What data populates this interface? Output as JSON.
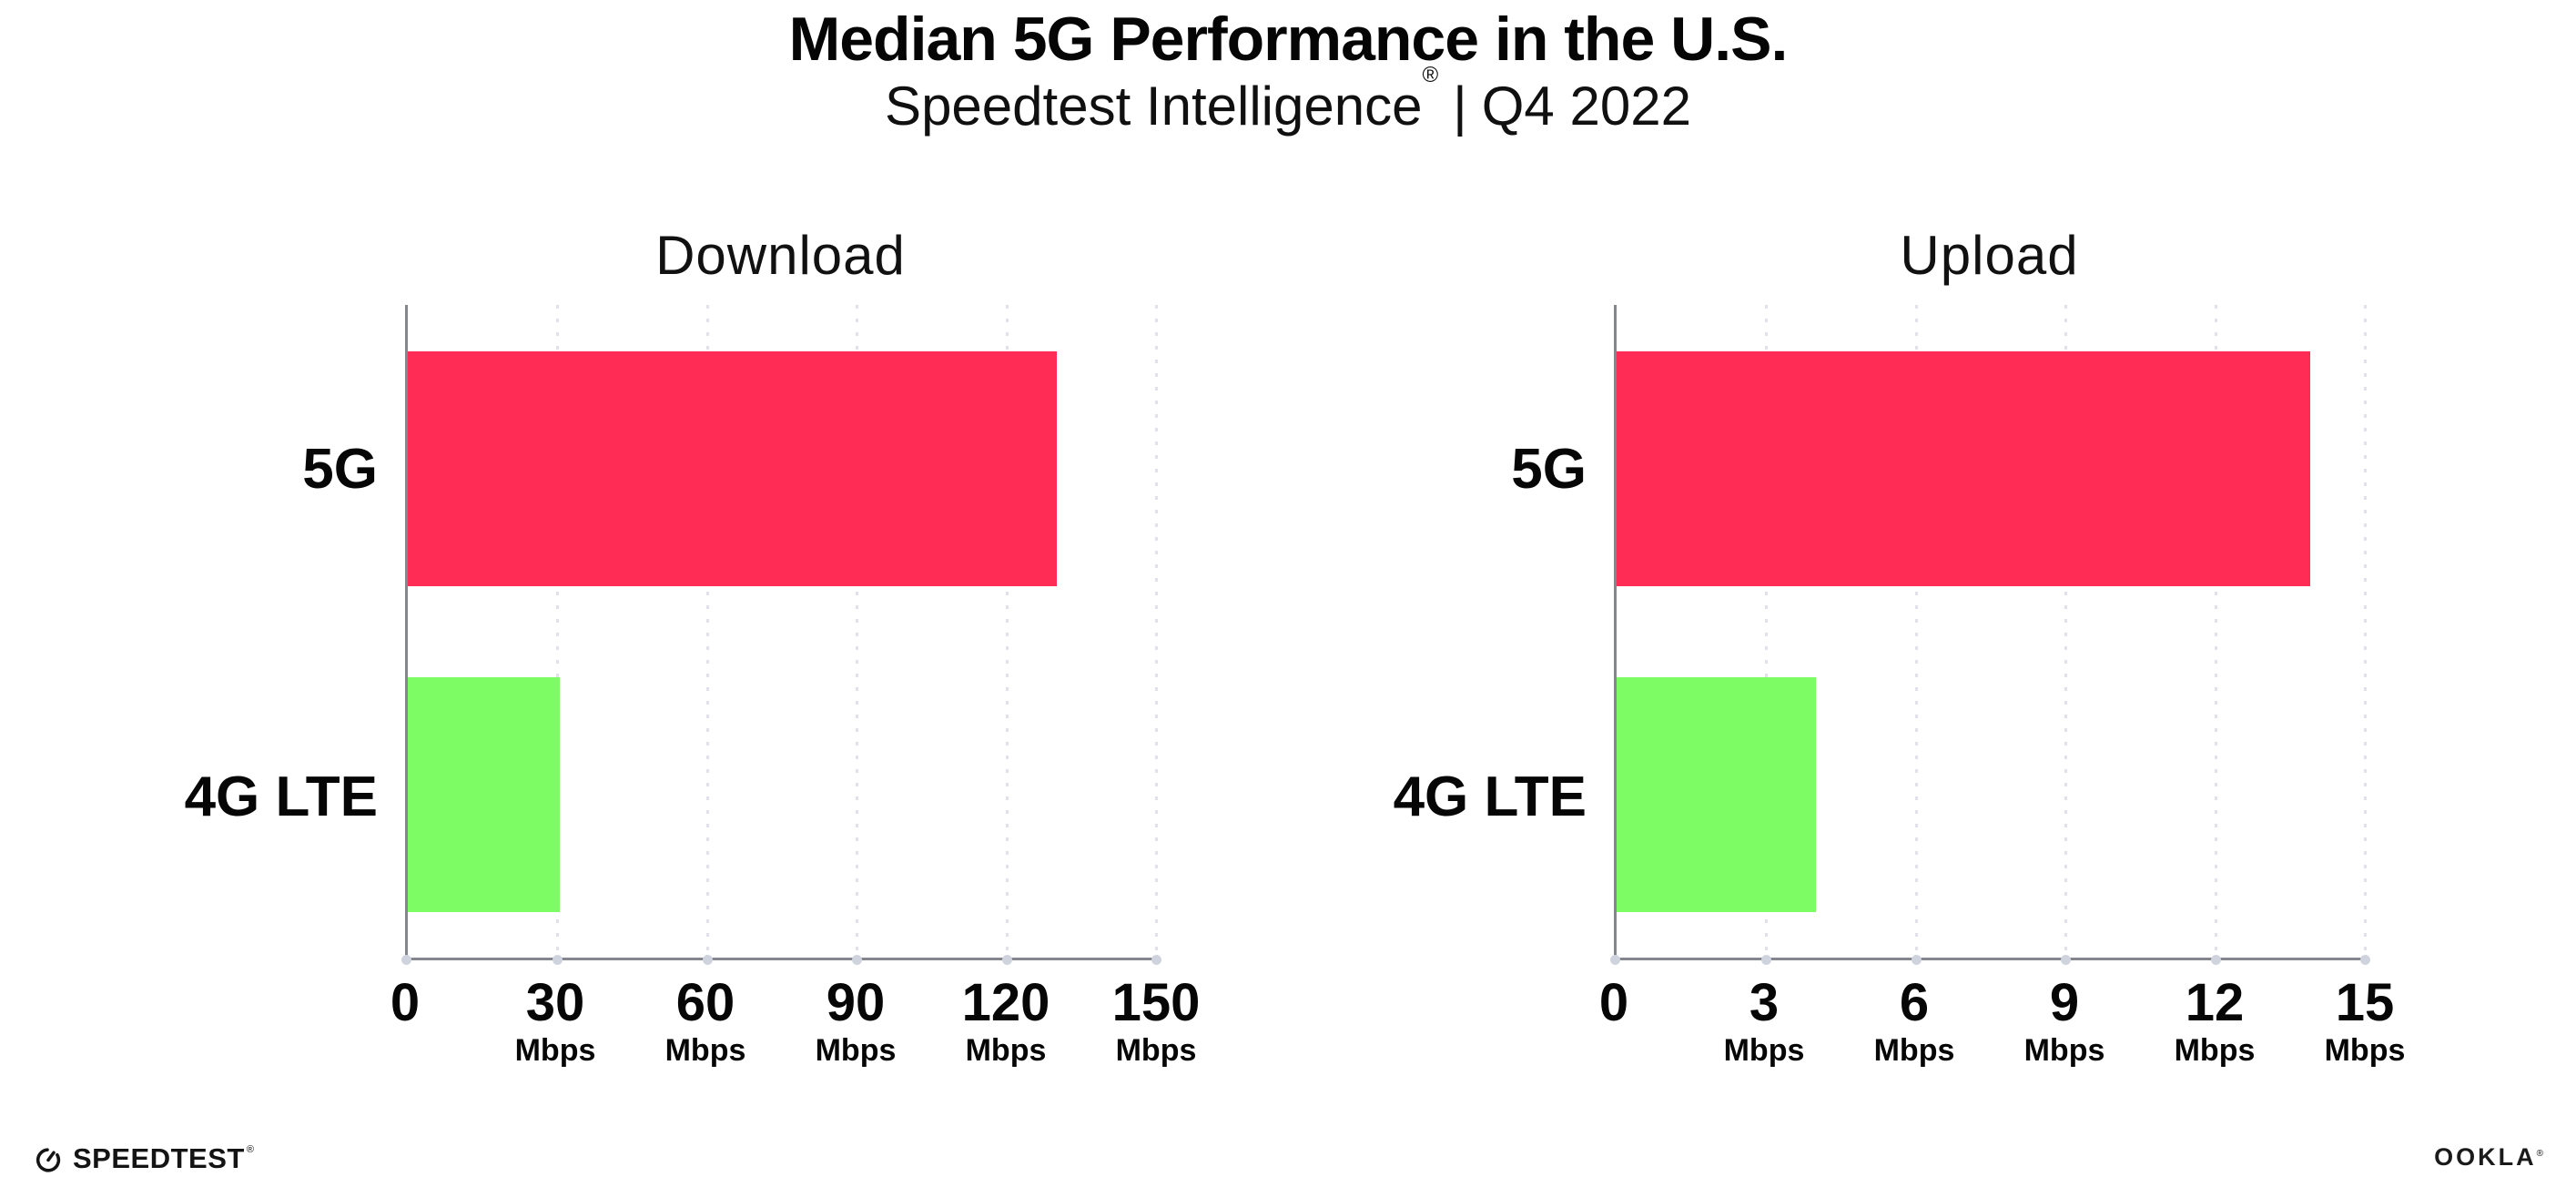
{
  "header": {
    "title": "Median 5G Performance in the U.S.",
    "subtitle": {
      "brand": "Speedtest Intelligence",
      "registered": "®",
      "separator": "|",
      "period": "Q4 2022"
    }
  },
  "chart_data": [
    {
      "type": "bar",
      "orientation": "horizontal",
      "title": "Download",
      "categories": [
        "5G",
        "4G LTE"
      ],
      "values": [
        130.2,
        30.5
      ],
      "unit": "Mbps",
      "xlim": [
        0,
        150
      ],
      "xticks": [
        0,
        30,
        60,
        90,
        120,
        150
      ],
      "bar_colors": [
        "#FF2D55",
        "#7DFC64"
      ],
      "grid": "dotted vertical gridlines at each tick",
      "legend": "none"
    },
    {
      "type": "bar",
      "orientation": "horizontal",
      "title": "Upload",
      "categories": [
        "5G",
        "4G LTE"
      ],
      "values": [
        13.9,
        4.0
      ],
      "unit": "Mbps",
      "xlim": [
        0,
        15
      ],
      "xticks": [
        0,
        3,
        6,
        9,
        12,
        15
      ],
      "bar_colors": [
        "#FF2D55",
        "#7DFC64"
      ],
      "grid": "dotted vertical gridlines at each tick",
      "legend": "none"
    }
  ],
  "footer": {
    "speedtest": {
      "label": "SPEEDTEST",
      "registered": "®",
      "icon": "speedtest-gauge-icon"
    },
    "ookla": {
      "label": "OOKLA",
      "registered": "®"
    }
  },
  "colors": {
    "bar_5g": "#FF2D55",
    "bar_4g_lte": "#7DFC64",
    "axis": "#85858D",
    "gridline": "#E0E1EA",
    "gridline_base_dot": "#CED3DE",
    "text": "#0D0D0D",
    "background": "#FFFFFF"
  }
}
